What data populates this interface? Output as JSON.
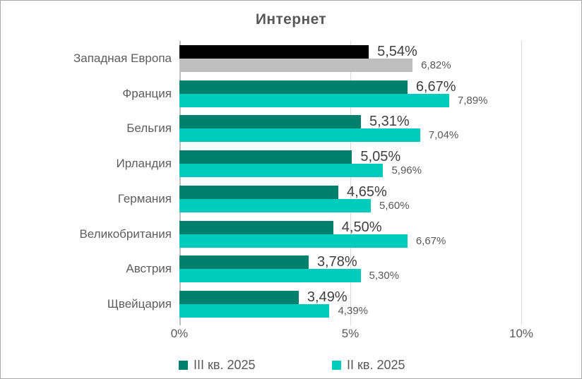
{
  "chart_data": {
    "type": "bar",
    "orientation": "horizontal",
    "title": "Интернет",
    "categories": [
      "Западная Европа",
      "Франция",
      "Бельгия",
      "Ирландия",
      "Германия",
      "Великобритания",
      "Австрия",
      "Щвейцария"
    ],
    "series": [
      {
        "name": "III кв. 2025",
        "color": "#00816E",
        "values": [
          5.54,
          6.67,
          5.31,
          5.05,
          4.65,
          4.5,
          3.78,
          3.49
        ],
        "labels": [
          "5,54%",
          "6,67%",
          "5,31%",
          "5,05%",
          "4,65%",
          "4,50%",
          "3,78%",
          "3,49%"
        ]
      },
      {
        "name": "II кв. 2025",
        "color": "#00CCBE",
        "values": [
          6.82,
          7.89,
          7.04,
          5.96,
          5.6,
          6.67,
          5.3,
          4.39
        ],
        "labels": [
          "6,82%",
          "7,89%",
          "7,04%",
          "5,96%",
          "5,60%",
          "6,67%",
          "5,30%",
          "4,39%"
        ]
      }
    ],
    "category_color_overrides": {
      "0": [
        "#000000",
        "#BFBFBF"
      ]
    },
    "x_ticks": [
      {
        "value": 0,
        "label": "0%"
      },
      {
        "value": 5,
        "label": "5%"
      },
      {
        "value": 10,
        "label": "10%"
      }
    ],
    "xlim": [
      0,
      10
    ],
    "gridlines": [
      5,
      10
    ],
    "legend_position": "bottom",
    "grid": true
  }
}
